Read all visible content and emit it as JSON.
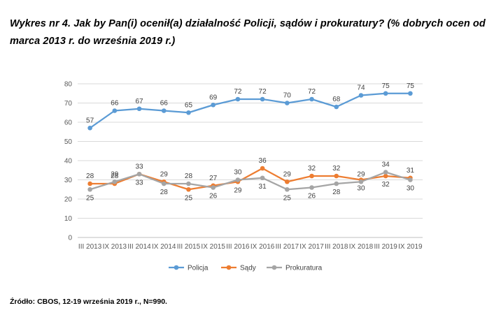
{
  "title": "Wykres nr 4. Jak by Pan(i) ocenił(a) działalność Policji, sądów i prokuratury? (% dobrych ocen od marca 2013 r. do września 2019 r.)",
  "source": "Źródło: CBOS, 12-19 września 2019 r., N=990.",
  "chart_data": {
    "type": "line",
    "title": "Wykres nr 4. Jak by Pan(i) ocenił(a) działalność Policji, sądów i prokuratury? (% dobrych ocen od marca 2013 r. do września 2019 r.)",
    "xlabel": "",
    "ylabel": "",
    "ylim": [
      0,
      80
    ],
    "yticks": [
      0,
      10,
      20,
      30,
      40,
      50,
      60,
      70,
      80
    ],
    "grid": true,
    "legend_position": "bottom",
    "categories": [
      "III 2013",
      "IX 2013",
      "III 2014",
      "IX 2014",
      "III 2015",
      "IX 2015",
      "III 2016",
      "IX 2016",
      "III 2017",
      "IX 2017",
      "III 2018",
      "IX 2018",
      "III 2019",
      "IX 2019"
    ],
    "series": [
      {
        "name": "Policja",
        "color": "#5B9BD5",
        "label_pos": "above",
        "values": [
          57,
          66,
          67,
          66,
          65,
          69,
          72,
          72,
          70,
          72,
          68,
          74,
          75,
          75
        ]
      },
      {
        "name": "Sądy",
        "color": "#ED7D31",
        "label_pos": [
          "above",
          "above",
          "below",
          "above",
          "below",
          "above",
          "below",
          "above",
          "above",
          "above",
          "above",
          "below",
          "below",
          "above"
        ],
        "values": [
          28,
          28,
          33,
          29,
          25,
          27,
          29,
          36,
          29,
          32,
          32,
          30,
          32,
          31
        ]
      },
      {
        "name": "Prokuratura",
        "color": "#A5A5A5",
        "label_pos": [
          "below",
          "above",
          "above",
          "below",
          "above",
          "below",
          "above",
          "below",
          "below",
          "below",
          "below",
          "above",
          "above",
          "below"
        ],
        "values": [
          25,
          29,
          33,
          28,
          28,
          26,
          30,
          31,
          25,
          26,
          28,
          29,
          34,
          30
        ]
      }
    ]
  }
}
